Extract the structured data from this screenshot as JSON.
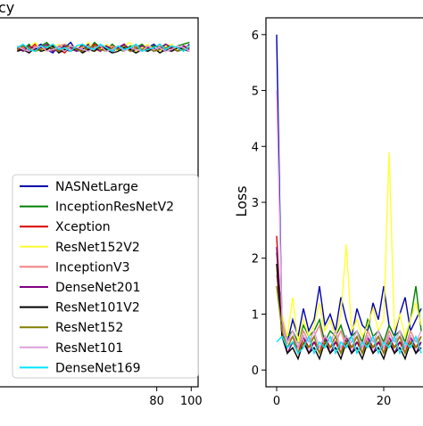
{
  "chart_data": [
    {
      "type": "line",
      "title": "",
      "title_visible_fragment": "cy",
      "xlabel": "",
      "ylabel": "",
      "xlim": [
        -12,
        104
      ],
      "ylim": [
        0,
        1.05
      ],
      "x_ticks": [
        80,
        100
      ],
      "grid": false,
      "legend_position": "lower-right",
      "series": [
        {
          "name": "NASNetLarge",
          "color": "#0000aa",
          "y": [
            0.96,
            0.97,
            0.955,
            0.965,
            0.975,
            0.96,
            0.95,
            0.97,
            0.965,
            0.98,
            0.955,
            0.96,
            0.975,
            0.965,
            0.96,
            0.97,
            0.955,
            0.965,
            0.975,
            0.96,
            0.97,
            0.96,
            0.965,
            0.975,
            0.96,
            0.955,
            0.97,
            0.965,
            0.96,
            0.975
          ]
        },
        {
          "name": "InceptionResNetV2",
          "color": "#008000",
          "y": [
            0.965,
            0.96,
            0.975,
            0.955,
            0.97,
            0.98,
            0.96,
            0.955,
            0.975,
            0.965,
            0.96,
            0.97,
            0.955,
            0.98,
            0.965,
            0.96,
            0.975,
            0.96,
            0.955,
            0.97,
            0.965,
            0.975,
            0.96,
            0.97,
            0.965,
            0.975,
            0.96,
            0.97,
            0.975,
            0.98
          ]
        },
        {
          "name": "Xception",
          "color": "#dd0000",
          "y": [
            0.955,
            0.97,
            0.96,
            0.975,
            0.955,
            0.965,
            0.975,
            0.96,
            0.95,
            0.97,
            0.965,
            0.955,
            0.96,
            0.975,
            0.965,
            0.955,
            0.97,
            0.96,
            0.975,
            0.955,
            0.96,
            0.97,
            0.955,
            0.965,
            0.975,
            0.96,
            0.965,
            0.955,
            0.97,
            0.965
          ]
        },
        {
          "name": "ResNet152V2",
          "color": "#ffff33",
          "y": [
            0.97,
            0.955,
            0.965,
            0.98,
            0.96,
            0.955,
            0.97,
            0.975,
            0.96,
            0.955,
            0.97,
            0.965,
            0.98,
            0.955,
            0.96,
            0.975,
            0.965,
            0.955,
            0.97,
            0.98,
            0.955,
            0.965,
            0.975,
            0.96,
            0.955,
            0.97,
            0.975,
            0.96,
            0.965,
            0.97
          ]
        },
        {
          "name": "InceptionV3",
          "color": "#f08080",
          "y": [
            0.96,
            0.965,
            0.955,
            0.97,
            0.965,
            0.96,
            0.955,
            0.97,
            0.975,
            0.96,
            0.955,
            0.965,
            0.97,
            0.96,
            0.955,
            0.965,
            0.97,
            0.96,
            0.965,
            0.955,
            0.97,
            0.96,
            0.965,
            0.955,
            0.97,
            0.965,
            0.955,
            0.965,
            0.96,
            0.965
          ]
        },
        {
          "name": "DenseNet201",
          "color": "#800080",
          "y": [
            0.965,
            0.955,
            0.97,
            0.96,
            0.965,
            0.975,
            0.955,
            0.96,
            0.97,
            0.965,
            0.955,
            0.975,
            0.96,
            0.965,
            0.955,
            0.97,
            0.96,
            0.965,
            0.975,
            0.955,
            0.96,
            0.97,
            0.965,
            0.955,
            0.96,
            0.975,
            0.965,
            0.955,
            0.97,
            0.96
          ]
        },
        {
          "name": "ResNet101V2",
          "color": "#000000",
          "y": [
            0.955,
            0.96,
            0.95,
            0.965,
            0.955,
            0.96,
            0.97,
            0.95,
            0.96,
            0.955,
            0.965,
            0.95,
            0.96,
            0.955,
            0.97,
            0.96,
            0.95,
            0.955,
            0.965,
            0.96,
            0.95,
            0.96,
            0.955,
            0.965,
            0.95,
            0.96,
            0.955,
            0.965,
            0.96,
            0.955
          ]
        },
        {
          "name": "ResNet152",
          "color": "#808000",
          "y": [
            0.96,
            0.97,
            0.965,
            0.955,
            0.96,
            0.97,
            0.965,
            0.955,
            0.965,
            0.97,
            0.96,
            0.955,
            0.965,
            0.97,
            0.96,
            0.955,
            0.965,
            0.96,
            0.97,
            0.955,
            0.965,
            0.96,
            0.97,
            0.955,
            0.96,
            0.965,
            0.97,
            0.955,
            0.96,
            0.965
          ]
        },
        {
          "name": "ResNet101",
          "color": "#dda0dd",
          "y": [
            0.97,
            0.96,
            0.955,
            0.965,
            0.97,
            0.955,
            0.96,
            0.965,
            0.955,
            0.97,
            0.965,
            0.96,
            0.955,
            0.965,
            0.97,
            0.955,
            0.96,
            0.97,
            0.955,
            0.965,
            0.96,
            0.955,
            0.97,
            0.96,
            0.965,
            0.955,
            0.96,
            0.97,
            0.965,
            0.955
          ]
        },
        {
          "name": "DenseNet169",
          "color": "#00e5ff",
          "y": [
            0.965,
            0.975,
            0.96,
            0.955,
            0.97,
            0.965,
            0.975,
            0.96,
            0.965,
            0.955,
            0.97,
            0.975,
            0.965,
            0.96,
            0.975,
            0.965,
            0.955,
            0.97,
            0.96,
            0.965,
            0.975,
            0.955,
            0.96,
            0.965,
            0.975,
            0.96,
            0.97,
            0.965,
            0.955,
            0.97
          ]
        }
      ]
    },
    {
      "type": "line",
      "title": "",
      "xlabel": "",
      "ylabel": "Loss",
      "xlim": [
        -2,
        28
      ],
      "ylim": [
        -0.3,
        6.3
      ],
      "x_ticks": [
        0,
        20
      ],
      "y_ticks": [
        0,
        1,
        2,
        3,
        4,
        5,
        6
      ],
      "grid": false,
      "x": [
        0,
        1,
        2,
        3,
        4,
        5,
        6,
        7,
        8,
        9,
        10,
        11,
        12,
        13,
        14,
        15,
        16,
        17,
        18,
        19,
        20,
        21,
        22,
        23,
        24,
        25,
        26,
        27
      ],
      "series": [
        {
          "name": "NASNetLarge",
          "color": "#0000aa",
          "values": [
            6.0,
            0.8,
            0.5,
            0.9,
            0.6,
            1.1,
            0.7,
            0.9,
            1.5,
            0.8,
            1.0,
            0.7,
            1.3,
            0.9,
            0.6,
            1.1,
            0.8,
            0.7,
            1.2,
            0.9,
            1.5,
            0.8,
            0.6,
            1.0,
            1.3,
            0.7,
            0.9,
            1.1
          ]
        },
        {
          "name": "InceptionResNetV2",
          "color": "#008000",
          "values": [
            2.1,
            0.9,
            0.6,
            0.7,
            0.5,
            0.8,
            0.6,
            0.7,
            0.9,
            0.5,
            0.7,
            0.6,
            0.8,
            0.5,
            0.6,
            0.7,
            0.5,
            0.9,
            0.6,
            0.7,
            0.5,
            0.8,
            0.6,
            0.7,
            0.5,
            0.9,
            1.5,
            0.7
          ]
        },
        {
          "name": "Xception",
          "color": "#dd0000",
          "values": [
            2.4,
            0.6,
            0.4,
            0.5,
            0.3,
            0.6,
            0.4,
            0.5,
            0.3,
            0.6,
            0.4,
            0.5,
            0.3,
            0.6,
            0.4,
            0.5,
            0.3,
            0.6,
            0.4,
            0.5,
            0.3,
            0.6,
            0.4,
            0.5,
            0.3,
            0.6,
            0.4,
            0.5
          ]
        },
        {
          "name": "ResNet152V2",
          "color": "#ffff33",
          "values": [
            1.8,
            1.0,
            0.6,
            1.3,
            0.5,
            0.9,
            0.6,
            0.8,
            1.2,
            0.7,
            0.9,
            0.6,
            1.0,
            2.25,
            0.7,
            0.9,
            0.6,
            0.8,
            1.1,
            0.7,
            0.9,
            3.9,
            0.7,
            1.0,
            0.6,
            0.9,
            1.2,
            0.8
          ]
        },
        {
          "name": "InceptionV3",
          "color": "#f08080",
          "values": [
            1.7,
            0.8,
            0.5,
            0.6,
            0.4,
            0.7,
            0.5,
            0.6,
            0.8,
            0.4,
            0.6,
            0.5,
            0.7,
            0.4,
            0.5,
            0.6,
            0.4,
            0.7,
            0.5,
            0.6,
            0.4,
            0.7,
            0.5,
            0.6,
            0.4,
            0.7,
            0.5,
            0.6
          ]
        },
        {
          "name": "DenseNet201",
          "color": "#800080",
          "values": [
            2.2,
            0.7,
            0.3,
            0.5,
            0.4,
            0.6,
            0.3,
            0.5,
            0.4,
            0.6,
            0.3,
            0.5,
            0.4,
            0.6,
            0.3,
            0.5,
            0.4,
            0.6,
            0.3,
            0.5,
            0.4,
            0.6,
            0.3,
            0.5,
            0.4,
            0.6,
            0.3,
            0.5
          ]
        },
        {
          "name": "ResNet101V2",
          "color": "#000000",
          "values": [
            1.9,
            0.6,
            0.3,
            0.4,
            0.2,
            0.5,
            0.3,
            0.4,
            0.2,
            0.5,
            0.3,
            0.4,
            0.2,
            0.5,
            0.3,
            0.4,
            0.2,
            0.5,
            0.3,
            0.4,
            0.2,
            0.5,
            0.3,
            0.4,
            0.2,
            0.5,
            0.3,
            0.4
          ]
        },
        {
          "name": "ResNet152",
          "color": "#808000",
          "values": [
            1.5,
            0.7,
            0.4,
            0.6,
            0.3,
            0.5,
            0.4,
            0.6,
            0.3,
            0.5,
            0.4,
            0.6,
            0.3,
            0.5,
            0.4,
            0.6,
            0.3,
            0.5,
            0.4,
            0.6,
            0.3,
            0.5,
            0.4,
            0.6,
            0.3,
            0.5,
            0.4,
            0.6
          ]
        },
        {
          "name": "ResNet101",
          "color": "#dda0dd",
          "values": [
            5.0,
            0.9,
            0.5,
            0.7,
            0.4,
            0.6,
            0.5,
            0.7,
            0.4,
            0.6,
            0.5,
            0.7,
            0.4,
            0.6,
            0.5,
            0.7,
            0.4,
            0.6,
            0.5,
            0.7,
            0.4,
            0.6,
            0.5,
            0.7,
            0.4,
            0.6,
            0.5,
            0.7
          ]
        },
        {
          "name": "DenseNet169",
          "color": "#00e5ff",
          "values": [
            0.5,
            0.6,
            0.4,
            0.5,
            0.3,
            0.4,
            0.6,
            0.3,
            0.5,
            0.4,
            0.6,
            0.3,
            0.5,
            0.4,
            0.6,
            0.3,
            0.5,
            0.4,
            0.6,
            0.3,
            0.5,
            0.4,
            0.6,
            0.3,
            0.5,
            0.4,
            0.6,
            0.3
          ]
        }
      ]
    }
  ]
}
